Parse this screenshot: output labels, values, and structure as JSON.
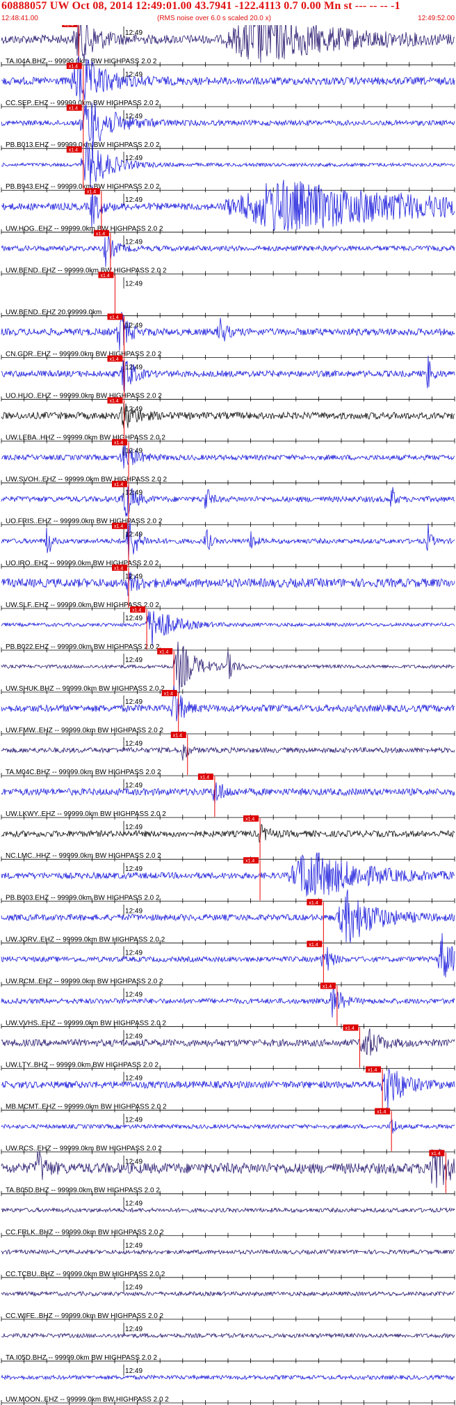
{
  "header": {
    "title": "60888057 UW Oct 08, 2014 12:49:01.00   43.7941 -122.4113  0.7 0.00 Mn st --- -- --  -1",
    "start_time": "12:48:41.00",
    "note": "(RMS noise over 6.0 s scaled 20.0 x)",
    "end_time": "12:49:52.00"
  },
  "colors": {
    "title": "#e01010",
    "pick_box": "#dd0000",
    "pick_line": "#ee0000",
    "trace_blue": "#1a1adc",
    "trace_navy": "#2a1a70",
    "trace_black": "#111111",
    "timeline": "#000000"
  },
  "time_mark": "12:49",
  "pick_label": "x1.4",
  "traces": [
    {
      "label": "TA.I04A.BHZ -- 99999.0km BW  HIGHPASS  2.0  2",
      "color": "navy",
      "pick": 0.14,
      "amp": 0.25,
      "bursts": [
        [
          0.17,
          0.04,
          1.0
        ],
        [
          0.55,
          0.18,
          1.0
        ]
      ]
    },
    {
      "label": "CC.SEP..EHZ -- 99999.0km BW  HIGHPASS  2.0  2",
      "color": "blue",
      "pick": 0.15,
      "amp": 0.22,
      "bursts": [
        [
          0.17,
          0.06,
          1.0
        ]
      ]
    },
    {
      "label": "PB.B013.EHZ -- 99999.0km BW  HIGHPASS  2.0  2",
      "color": "blue",
      "pick": 0.15,
      "amp": 0.15,
      "bursts": [
        [
          0.19,
          0.06,
          1.0
        ]
      ]
    },
    {
      "label": "PB.B943.EHZ -- 99999.0km BW  HIGHPASS  2.0  2",
      "color": "blue",
      "pick": 0.15,
      "amp": 0.1,
      "bursts": [
        [
          0.19,
          0.05,
          1.0
        ]
      ]
    },
    {
      "label": "UW.HOG..EHZ -- 99999.0km BW  HIGHPASS  2.0  2",
      "color": "blue",
      "pick": 0.19,
      "amp": 0.2,
      "bursts": [
        [
          0.2,
          0.015,
          0.9
        ],
        [
          0.6,
          0.36,
          0.95
        ]
      ]
    },
    {
      "label": "UW.BEND..EHZ -- 99999.0km BW  HIGHPASS  2.0  2",
      "color": "blue",
      "pick": 0.21,
      "amp": 0.15,
      "bursts": [
        [
          0.23,
          0.02,
          0.6
        ]
      ]
    },
    {
      "label": "UW.BEND..EHZ 20.99999.0km",
      "color": "none",
      "pick": 0.22,
      "amp": 0,
      "bursts": []
    },
    {
      "label": "CN.GDR..EHZ -- 99999.0km BW  HIGHPASS  2.0  2",
      "color": "blue",
      "pick": 0.24,
      "amp": 0.2,
      "bursts": [
        [
          0.26,
          0.02,
          0.9
        ],
        [
          0.48,
          0.015,
          0.6
        ]
      ]
    },
    {
      "label": "UO.HUO..EHZ -- 99999.0km BW  HIGHPASS  2.0  2",
      "color": "blue",
      "pick": 0.24,
      "amp": 0.18,
      "bursts": [
        [
          0.27,
          0.02,
          0.9
        ],
        [
          0.94,
          0.01,
          0.7
        ]
      ]
    },
    {
      "label": "UW.LEBA..HHZ -- 99999.0km BW  HIGHPASS  2.0  2",
      "color": "black",
      "pick": 0.24,
      "amp": 0.2,
      "bursts": [
        [
          0.27,
          0.03,
          0.5
        ]
      ]
    },
    {
      "label": "UW.SVOH..EHZ -- 99999.0km BW  HIGHPASS  2.0  2",
      "color": "blue",
      "pick": 0.25,
      "amp": 0.15,
      "bursts": [
        [
          0.27,
          0.03,
          0.5
        ]
      ]
    },
    {
      "label": "UO.FRIS..EHZ -- 99999.0km BW  HIGHPASS  2.0  2",
      "color": "blue",
      "pick": 0.25,
      "amp": 0.16,
      "bursts": [
        [
          0.27,
          0.02,
          1.0
        ],
        [
          0.45,
          0.01,
          0.6
        ],
        [
          0.86,
          0.008,
          0.6
        ]
      ]
    },
    {
      "label": "UO.IRO..EHZ -- 99999.0km BW  HIGHPASS  2.0  2",
      "color": "blue",
      "pick": 0.25,
      "amp": 0.14,
      "bursts": [
        [
          0.1,
          0.008,
          0.9
        ],
        [
          0.28,
          0.02,
          1.0
        ],
        [
          0.45,
          0.008,
          0.8
        ],
        [
          0.55,
          0.008,
          0.6
        ],
        [
          0.94,
          0.008,
          0.7
        ]
      ]
    },
    {
      "label": "UW.SLF..EHZ -- 99999.0km BW  HIGHPASS  2.0  2",
      "color": "blue",
      "pick": 0.25,
      "amp": 0.25,
      "bursts": [
        [
          0.28,
          0.02,
          0.4
        ]
      ]
    },
    {
      "label": "PB.B022.EHZ -- 99999.0km BW  HIGHPASS  2.0  2",
      "color": "blue",
      "pick": 0.29,
      "amp": 0.1,
      "bursts": [
        [
          0.33,
          0.05,
          0.8
        ]
      ]
    },
    {
      "label": "UW.SHUK.BHZ -- 99999.0km BW  HIGHPASS  2.0  2",
      "color": "navy",
      "pick": 0.35,
      "amp": 0.1,
      "bursts": [
        [
          0.39,
          0.04,
          1.0
        ],
        [
          0.5,
          0.015,
          0.5
        ]
      ]
    },
    {
      "label": "UW.FMW..EHZ -- 99999.0km BW  HIGHPASS  2.0  2",
      "color": "blue",
      "pick": 0.36,
      "amp": 0.2,
      "bursts": [
        [
          0.38,
          0.02,
          0.9
        ]
      ]
    },
    {
      "label": "TA.M04C.BHZ -- 99999.0km BW  HIGHPASS  2.0  2",
      "color": "navy",
      "pick": 0.38,
      "amp": 0.15,
      "bursts": [
        [
          0.4,
          0.01,
          0.5
        ]
      ]
    },
    {
      "label": "UW.LKWY..EHZ -- 99999.0km BW  HIGHPASS  2.0  2",
      "color": "blue",
      "pick": 0.44,
      "amp": 0.2,
      "bursts": [
        [
          0.47,
          0.02,
          0.5
        ]
      ]
    },
    {
      "label": "NC.LMC..HHZ -- 99999.0km BW  HIGHPASS  2.0  2",
      "color": "black",
      "pick": 0.54,
      "amp": 0.18,
      "bursts": [
        [
          0.57,
          0.02,
          0.3
        ]
      ]
    },
    {
      "label": "PB.B003.EHZ -- 99999.0km BW  HIGHPASS  2.0  2",
      "color": "blue",
      "pick": 0.54,
      "amp": 0.18,
      "bursts": [
        [
          0.67,
          0.12,
          1.0
        ]
      ]
    },
    {
      "label": "UW.JORV..EHZ -- 99999.0km BW  HIGHPASS  2.0  2",
      "color": "blue",
      "pick": 0.68,
      "amp": 0.18,
      "bursts": [
        [
          0.76,
          0.07,
          1.0
        ]
      ]
    },
    {
      "label": "UW.RCM..EHZ -- 99999.0km BW  HIGHPASS  2.0  2",
      "color": "blue",
      "pick": 0.68,
      "amp": 0.15,
      "bursts": [
        [
          0.71,
          0.015,
          0.8
        ],
        [
          0.97,
          0.03,
          1.0
        ]
      ]
    },
    {
      "label": "UW.VVHS..EHZ -- 99999.0km BW  HIGHPASS  2.0  2",
      "color": "blue",
      "pick": 0.71,
      "amp": 0.15,
      "bursts": [
        [
          0.73,
          0.02,
          0.7
        ]
      ]
    },
    {
      "label": "UW.LTY..BHZ -- 99999.0km BW  HIGHPASS  2.0  2",
      "color": "navy",
      "pick": 0.76,
      "amp": 0.2,
      "bursts": [
        [
          0.8,
          0.03,
          0.7
        ]
      ]
    },
    {
      "label": "MB.MCMT..EHZ -- 99999.0km BW  HIGHPASS  2.0  2",
      "color": "blue",
      "pick": 0.81,
      "amp": 0.2,
      "bursts": [
        [
          0.85,
          0.04,
          0.9
        ]
      ]
    },
    {
      "label": "UW.RCS..EHZ -- 99999.0km BW  HIGHPASS  2.0  2",
      "color": "blue",
      "pick": 0.83,
      "amp": 0.12,
      "bursts": [
        [
          0.86,
          0.01,
          0.5
        ]
      ]
    },
    {
      "label": "TA.B05D.BHZ -- 99999.0km BW  HIGHPASS  2.0  2",
      "color": "navy",
      "pick": 0.95,
      "amp": 0.3,
      "bursts": [
        [
          0.95,
          0.04,
          0.9
        ],
        [
          0.08,
          0.02,
          0.6
        ]
      ]
    },
    {
      "label": "CC.FRLK..BHZ -- 99999.0km BW  HIGHPASS  2.0  2",
      "color": "navy",
      "pick": -1,
      "amp": 0.12,
      "bursts": []
    },
    {
      "label": "CC.TCBU..BHZ -- 99999.0km BW  HIGHPASS  2.0  2",
      "color": "navy",
      "pick": -1,
      "amp": 0.12,
      "bursts": []
    },
    {
      "label": "CC.WIFE..BHZ -- 99999.0km BW  HIGHPASS  2.0  2",
      "color": "navy",
      "pick": -1,
      "amp": 0.12,
      "bursts": []
    },
    {
      "label": "TA.I05D.BHZ -- 99999.0km BW  HIGHPASS  2.0  2",
      "color": "navy",
      "pick": -1,
      "amp": 0.12,
      "bursts": []
    },
    {
      "label": "UW.MOON..EHZ -- 99999.0km BW  HIGHPASS  2.0  2",
      "color": "blue",
      "pick": -1,
      "amp": 0.12,
      "bursts": []
    }
  ]
}
